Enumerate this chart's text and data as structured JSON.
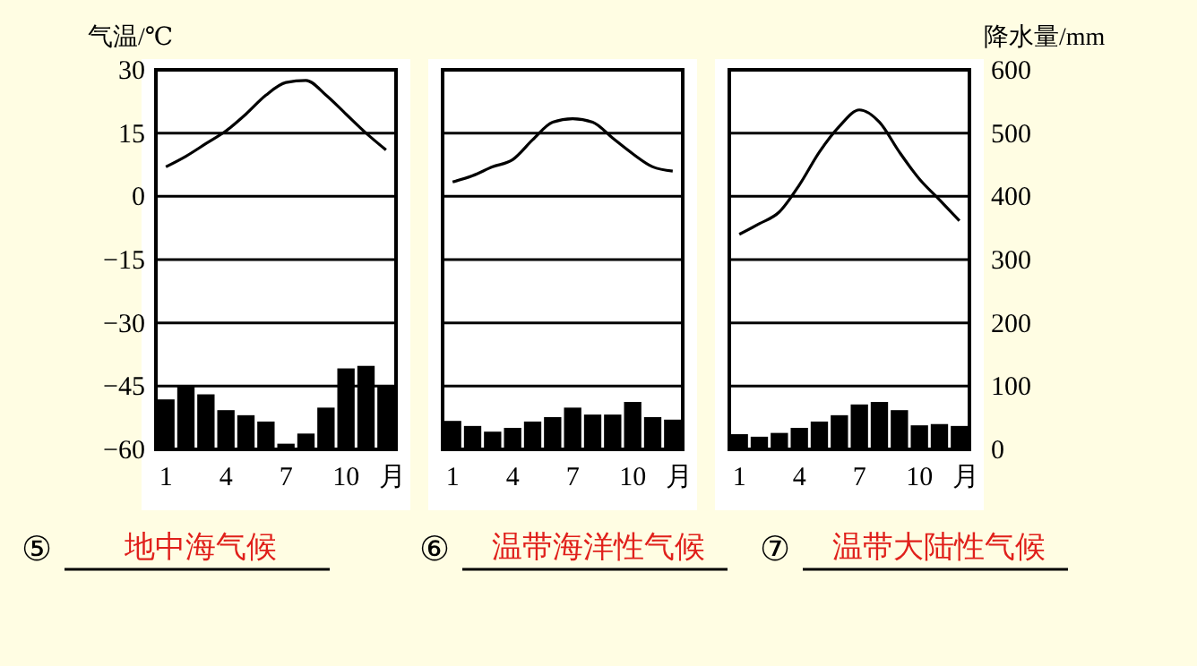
{
  "chart_data": [
    {
      "type": "bar",
      "title": "⑤",
      "subtitle": "地中海气候",
      "ylabel": "气温/℃",
      "xlabel": "月",
      "x": [
        1,
        2,
        3,
        4,
        5,
        6,
        7,
        8,
        9,
        10,
        11,
        12
      ],
      "xlim": [
        0.5,
        12.5
      ],
      "xticks": [
        1,
        4,
        7,
        10
      ],
      "ylim": [
        -60,
        30
      ],
      "yticks": [
        {
          "value": -60,
          "label": "−60"
        },
        {
          "value": -45,
          "label": "−45"
        },
        {
          "value": -30,
          "label": "−30"
        },
        {
          "value": -15,
          "label": "−15"
        },
        0,
        15,
        30
      ],
      "y2lim": [
        0,
        600
      ],
      "grid": "y",
      "series": [
        {
          "axis": "y2",
          "color": "#000000",
          "values": [
            79,
            101,
            87,
            62,
            54,
            44,
            9,
            25,
            66,
            128,
            132,
            101
          ]
        },
        {
          "type": "line",
          "color": "#000000",
          "values": [
            7,
            9.5,
            12.5,
            15.5,
            19.5,
            24,
            27,
            27.5,
            24,
            19.5,
            15,
            11
          ]
        }
      ]
    },
    {
      "type": "bar",
      "title": "⑥",
      "subtitle": "温带海洋性气候",
      "xlabel": "月",
      "x": [
        1,
        2,
        3,
        4,
        5,
        6,
        7,
        8,
        9,
        10,
        11,
        12
      ],
      "xlim": [
        0.5,
        12.5
      ],
      "xticks": [
        1,
        4,
        7,
        10
      ],
      "ylim": [
        -60,
        30
      ],
      "yticks": [
        {
          "value": -60,
          "label": null
        },
        {
          "value": -45,
          "label": null
        },
        {
          "value": -30,
          "label": null
        },
        {
          "value": -15,
          "label": null
        },
        {
          "value": 0,
          "label": null
        },
        {
          "value": 15,
          "label": null
        },
        {
          "value": 30,
          "label": null
        }
      ],
      "y2lim": [
        0,
        600
      ],
      "grid": "y",
      "tick_labels": "x",
      "series": [
        {
          "axis": "y2",
          "color": "#000000",
          "values": [
            45,
            37,
            28,
            34,
            44,
            51,
            66,
            55,
            55,
            75,
            51,
            47
          ]
        },
        {
          "type": "line",
          "color": "#000000",
          "values": [
            3.4,
            4.9,
            7,
            8.7,
            13.4,
            17.6,
            18.4,
            17.6,
            13.8,
            10.1,
            7,
            6
          ]
        }
      ]
    },
    {
      "type": "bar",
      "title": "⑦",
      "subtitle": "温带大陆性气候",
      "y2label": "降水量/mm",
      "xlabel": "月",
      "x": [
        1,
        2,
        3,
        4,
        5,
        6,
        7,
        8,
        9,
        10,
        11,
        12
      ],
      "xlim": [
        0.5,
        12.5
      ],
      "xticks": [
        1,
        4,
        7,
        10
      ],
      "ylim": [
        -60,
        30
      ],
      "y2lim": [
        0,
        600
      ],
      "y2ticks": [
        0,
        100,
        200,
        300,
        400,
        500,
        600
      ],
      "grid": "y",
      "series": [
        {
          "axis": "y2",
          "color": "#000000",
          "values": [
            24,
            20,
            26,
            34,
            44,
            54,
            71,
            75,
            62,
            38,
            40,
            37
          ]
        },
        {
          "type": "line",
          "color": "#000000",
          "values": [
            -9,
            -6.5,
            -3.7,
            2.7,
            10.5,
            16.6,
            20.5,
            17.6,
            10.5,
            4.1,
            -0.8,
            -5.8
          ]
        }
      ]
    }
  ]
}
